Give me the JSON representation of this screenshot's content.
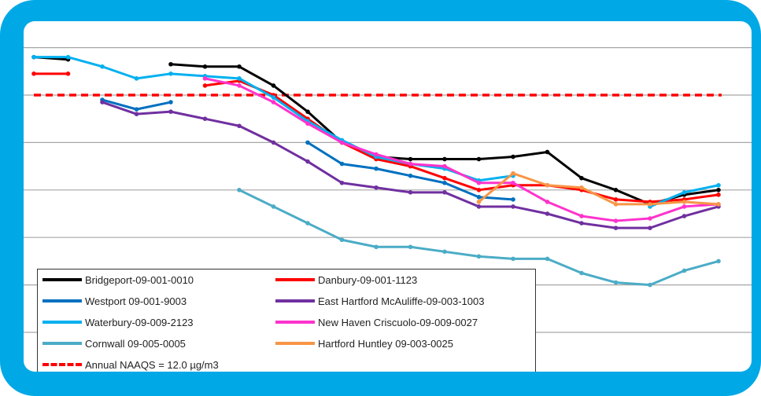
{
  "chart_data": {
    "type": "line",
    "x": [
      1,
      2,
      3,
      4,
      5,
      6,
      7,
      8,
      9,
      10,
      11,
      12,
      13,
      14,
      15,
      16,
      17,
      18,
      19,
      20,
      21
    ],
    "ylim": [
      0,
      15
    ],
    "grid": true,
    "gridlines_y": [
      2,
      4,
      6,
      8,
      10,
      12,
      14
    ],
    "legend_position": "bottom-left",
    "series": [
      {
        "name": "Bridgeport-09-001-0010",
        "color": "#000000",
        "values": [
          13.6,
          13.5,
          null,
          null,
          13.3,
          13.2,
          13.2,
          12.4,
          11.3,
          10.0,
          9.4,
          9.3,
          9.3,
          9.3,
          9.4,
          9.6,
          8.5,
          8.0,
          7.4,
          7.8,
          8.0
        ]
      },
      {
        "name": "Danbury-09-001-1123",
        "color": "#ff0000",
        "values": [
          12.9,
          12.9,
          null,
          null,
          null,
          12.4,
          12.6,
          12.0,
          11.0,
          10.0,
          9.3,
          9.0,
          8.5,
          8.0,
          8.2,
          8.2,
          8.0,
          7.6,
          7.5,
          7.6,
          7.8
        ]
      },
      {
        "name": "Westport 09-001-9003",
        "color": "#0070c0",
        "values": [
          null,
          null,
          11.8,
          11.4,
          11.7,
          null,
          null,
          null,
          10.0,
          9.1,
          8.9,
          8.6,
          8.3,
          7.7,
          7.6,
          null,
          null,
          null,
          null,
          null,
          null
        ]
      },
      {
        "name": "East Hartford McAuliffe-09-003-1003",
        "color": "#7030a0",
        "values": [
          null,
          null,
          11.7,
          11.2,
          11.3,
          11.0,
          10.7,
          10.0,
          9.2,
          8.3,
          8.1,
          7.9,
          7.9,
          7.3,
          7.3,
          7.0,
          6.6,
          6.4,
          6.4,
          6.9,
          7.3
        ]
      },
      {
        "name": "Waterbury-09-009-2123",
        "color": "#00b0f0",
        "values": [
          13.6,
          13.6,
          13.2,
          12.7,
          12.9,
          12.8,
          12.7,
          11.9,
          10.9,
          10.1,
          9.4,
          9.1,
          8.9,
          8.4,
          8.6,
          null,
          null,
          null,
          7.3,
          7.9,
          8.2
        ]
      },
      {
        "name": "New Haven Criscuolo-09-009-0027",
        "color": "#ff33cc",
        "values": [
          null,
          null,
          null,
          null,
          null,
          12.7,
          12.4,
          11.7,
          10.8,
          10.0,
          9.5,
          9.1,
          9.0,
          8.3,
          8.3,
          7.5,
          6.9,
          6.7,
          6.8,
          7.3,
          7.4
        ]
      },
      {
        "name": "Cornwall 09-005-0005",
        "color": "#4bacc6",
        "values": [
          null,
          null,
          null,
          null,
          null,
          null,
          8.0,
          7.3,
          6.6,
          5.9,
          5.6,
          5.6,
          5.4,
          5.2,
          5.1,
          5.1,
          4.5,
          4.1,
          4.0,
          4.6,
          5.0
        ]
      },
      {
        "name": "Hartford Huntley 09-003-0025",
        "color": "#f79646",
        "values": [
          null,
          null,
          null,
          null,
          null,
          null,
          null,
          null,
          null,
          null,
          null,
          null,
          null,
          7.5,
          8.7,
          8.2,
          8.1,
          7.4,
          7.4,
          7.5,
          7.4
        ]
      }
    ],
    "reference_line": {
      "name": "Annual NAAQS = 12.0 µg/m3",
      "value": 12.0,
      "color": "#ff0000",
      "style": "dashed"
    }
  },
  "colors": {
    "frame": "#00a8e6",
    "grid": "#a6a6a6"
  }
}
